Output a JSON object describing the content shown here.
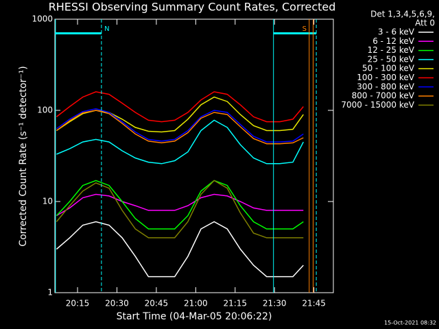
{
  "chart_data": {
    "type": "line",
    "title": "RHESSI Observing Summary Count Rates, Corrected",
    "x_label": "Start Time (04-Mar-05 20:06:22)",
    "y_label": "Corrected Count Rate (s⁻¹ detector⁻¹)",
    "legend_header": [
      "Det 1,3,4,5,6,9,",
      "Att 0"
    ],
    "footer": "15-Oct-2021 08:32",
    "ylog": true,
    "ylim": [
      1,
      1000
    ],
    "yticks": [
      1,
      10,
      100,
      1000
    ],
    "xlim": [
      1206.37,
      1312.4
    ],
    "xticks": [
      {
        "value": 1215,
        "label": "20:15"
      },
      {
        "value": 1230,
        "label": "20:30"
      },
      {
        "value": 1245,
        "label": "20:45"
      },
      {
        "value": 1260,
        "label": "21:00"
      },
      {
        "value": 1275,
        "label": "21:15"
      },
      {
        "value": 1290,
        "label": "21:30"
      },
      {
        "value": 1305,
        "label": "21:45"
      }
    ],
    "x": [
      1207,
      1212,
      1217,
      1222,
      1227,
      1232,
      1237,
      1242,
      1247,
      1252,
      1257,
      1262,
      1267,
      1272,
      1277,
      1282,
      1287,
      1292,
      1297,
      1301
    ],
    "series": [
      {
        "name": "3 - 6 keV",
        "color": "#ffffff",
        "values": [
          3,
          4,
          5.5,
          6,
          5.5,
          4,
          2.5,
          1.5,
          1.5,
          1.5,
          2.5,
          5,
          6,
          5,
          3,
          2,
          1.5,
          1.5,
          1.5,
          2
        ]
      },
      {
        "name": "6 - 12 keV",
        "color": "#ff00ff",
        "values": [
          7,
          8.5,
          11,
          12,
          11.5,
          10,
          9,
          8,
          8,
          8,
          9,
          11,
          12,
          11.5,
          10,
          8.5,
          8,
          8,
          8,
          8
        ]
      },
      {
        "name": "12 - 25 keV",
        "color": "#00ff00",
        "values": [
          7,
          10,
          15,
          17,
          15,
          10,
          6.5,
          5,
          5,
          5,
          7,
          13,
          17,
          15,
          9,
          6,
          5,
          5,
          5,
          6
        ]
      },
      {
        "name": "25 - 50 keV",
        "color": "#00ffff",
        "values": [
          33,
          38,
          45,
          48,
          45,
          36,
          30,
          27,
          26,
          28,
          35,
          60,
          78,
          65,
          42,
          30,
          26,
          26,
          27,
          45
        ]
      },
      {
        "name": "50 - 100 keV",
        "color": "#e6e600",
        "values": [
          60,
          75,
          92,
          100,
          95,
          80,
          65,
          59,
          58,
          60,
          80,
          115,
          140,
          125,
          90,
          68,
          60,
          60,
          62,
          90
        ]
      },
      {
        "name": "100 - 300 keV",
        "color": "#ff0000",
        "values": [
          85,
          110,
          140,
          160,
          150,
          120,
          95,
          78,
          75,
          78,
          95,
          130,
          160,
          150,
          115,
          85,
          75,
          75,
          80,
          110
        ]
      },
      {
        "name": "300 - 800 keV",
        "color": "#0000ff",
        "values": [
          63,
          80,
          97,
          104,
          95,
          75,
          58,
          48,
          46,
          48,
          60,
          85,
          100,
          95,
          70,
          52,
          45,
          45,
          46,
          55
        ]
      },
      {
        "name": "800 - 7000 keV",
        "color": "#ff8000",
        "values": [
          60,
          77,
          94,
          100,
          92,
          72,
          55,
          46,
          44,
          46,
          57,
          82,
          95,
          90,
          66,
          49,
          43,
          43,
          44,
          50
        ]
      },
      {
        "name": "7000 - 15000 keV",
        "color": "#808000",
        "values": [
          6,
          9,
          13,
          16,
          14,
          8,
          5,
          4,
          4,
          4,
          6,
          12,
          17,
          14,
          7.5,
          4.5,
          4,
          4,
          4,
          4
        ]
      }
    ],
    "night_level": 700,
    "night_color": "#00ffff",
    "night": [
      {
        "start": 1206.37,
        "end": 1224.1
      },
      {
        "start": 1289.6,
        "end": 1305.9
      }
    ],
    "vlines": [
      {
        "x": 1206.6,
        "color": "#00ffff",
        "dash": false
      },
      {
        "x": 1224.1,
        "color": "#00ffff",
        "dash": true
      },
      {
        "x": 1289.6,
        "color": "#00ffff",
        "dash": false
      },
      {
        "x": 1305.9,
        "color": "#00ffff",
        "dash": true
      },
      {
        "x": 1303.2,
        "color": "#ff8000",
        "dash": false
      },
      {
        "x": 1304.7,
        "color": "#ff8000",
        "dash": false
      }
    ],
    "markers": [
      {
        "label": "N",
        "x": 1224.1,
        "color": "#00ffff"
      },
      {
        "label": "S",
        "x": 1303.2,
        "color": "#ff8000"
      }
    ]
  }
}
